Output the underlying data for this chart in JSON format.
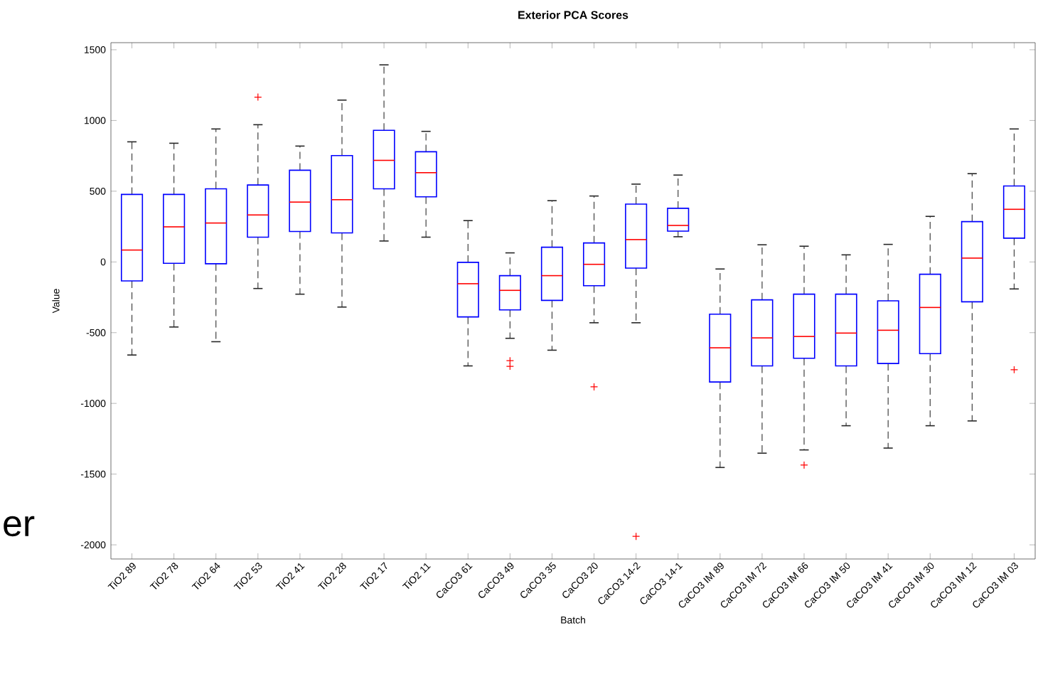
{
  "chart_data": {
    "type": "box",
    "title": "Exterior PCA Scores",
    "xlabel": "Batch",
    "ylabel": "Value",
    "annotations": [
      "er"
    ],
    "categories": [
      "TiO2 89",
      "TiO2 78",
      "TiO2 64",
      "TiO2 53",
      "TiO2 41",
      "TiO2 28",
      "TiO2 17",
      "TiO2 11",
      "CaCO3 61",
      "CaCO3 49",
      "CaCO3 35",
      "CaCO3 20",
      "CaCO3 14-2",
      "CaCO3 14-1",
      "CaCO3 IM 89",
      "CaCO3 IM 72",
      "CaCO3 IM 66",
      "CaCO3 IM 50",
      "CaCO3 IM 41",
      "CaCO3 IM 30",
      "CaCO3 IM 12",
      "CaCO3 IM 03"
    ],
    "marker": "cross",
    "ylim": [
      -2100,
      1550
    ],
    "yticks": [
      -2000,
      -1500,
      -1000,
      -500,
      0,
      500,
      1000,
      1500
    ],
    "series": [
      {
        "color": "#0000ff",
        "boxes": [
          {
            "low": -658,
            "q1": -134,
            "median": 84,
            "q3": 477,
            "high": 849
          },
          {
            "low": -460,
            "q1": -10,
            "median": 248,
            "q3": 477,
            "high": 839
          },
          {
            "low": -564,
            "q1": -13,
            "median": 275,
            "q3": 517,
            "high": 940
          },
          {
            "low": -188,
            "q1": 175,
            "median": 332,
            "q3": 544,
            "high": 970,
            "outliers": [
              1165
            ]
          },
          {
            "low": -228,
            "q1": 215,
            "median": 423,
            "q3": 648,
            "high": 819
          },
          {
            "low": -319,
            "q1": 205,
            "median": 440,
            "q3": 752,
            "high": 1144
          },
          {
            "low": 148,
            "q1": 517,
            "median": 718,
            "q3": 930,
            "high": 1393
          },
          {
            "low": 175,
            "q1": 460,
            "median": 631,
            "q3": 779,
            "high": 923
          },
          {
            "low": -735,
            "q1": -389,
            "median": -154,
            "q3": -3,
            "high": 292
          },
          {
            "low": -540,
            "q1": -339,
            "median": -201,
            "q3": -97,
            "high": 64,
            "outliers": [
              -698,
              -738
            ]
          },
          {
            "low": -624,
            "q1": -272,
            "median": -97,
            "q3": 104,
            "high": 433
          },
          {
            "low": -430,
            "q1": -168,
            "median": -17,
            "q3": 134,
            "high": 466,
            "outliers": [
              -883
            ]
          },
          {
            "low": -430,
            "q1": -44,
            "median": 158,
            "q3": 409,
            "high": 550,
            "outliers": [
              -1940
            ]
          },
          {
            "low": 178,
            "q1": 218,
            "median": 258,
            "q3": 379,
            "high": 614
          },
          {
            "low": -1453,
            "q1": -849,
            "median": -607,
            "q3": -369,
            "high": -50
          },
          {
            "low": -1352,
            "q1": -735,
            "median": -537,
            "q3": -268,
            "high": 121
          },
          {
            "low": -1329,
            "q1": -681,
            "median": -527,
            "q3": -228,
            "high": 111,
            "outliers": [
              -1436
            ]
          },
          {
            "low": -1158,
            "q1": -735,
            "median": -503,
            "q3": -228,
            "high": 50
          },
          {
            "low": -1316,
            "q1": -718,
            "median": -483,
            "q3": -275,
            "high": 124
          },
          {
            "low": -1158,
            "q1": -648,
            "median": -322,
            "q3": -87,
            "high": 322
          },
          {
            "low": -1124,
            "q1": -282,
            "median": 27,
            "q3": 285,
            "high": 624
          },
          {
            "low": -191,
            "q1": 168,
            "median": 372,
            "q3": 537,
            "high": 940,
            "outliers": [
              -762
            ]
          }
        ]
      }
    ]
  }
}
